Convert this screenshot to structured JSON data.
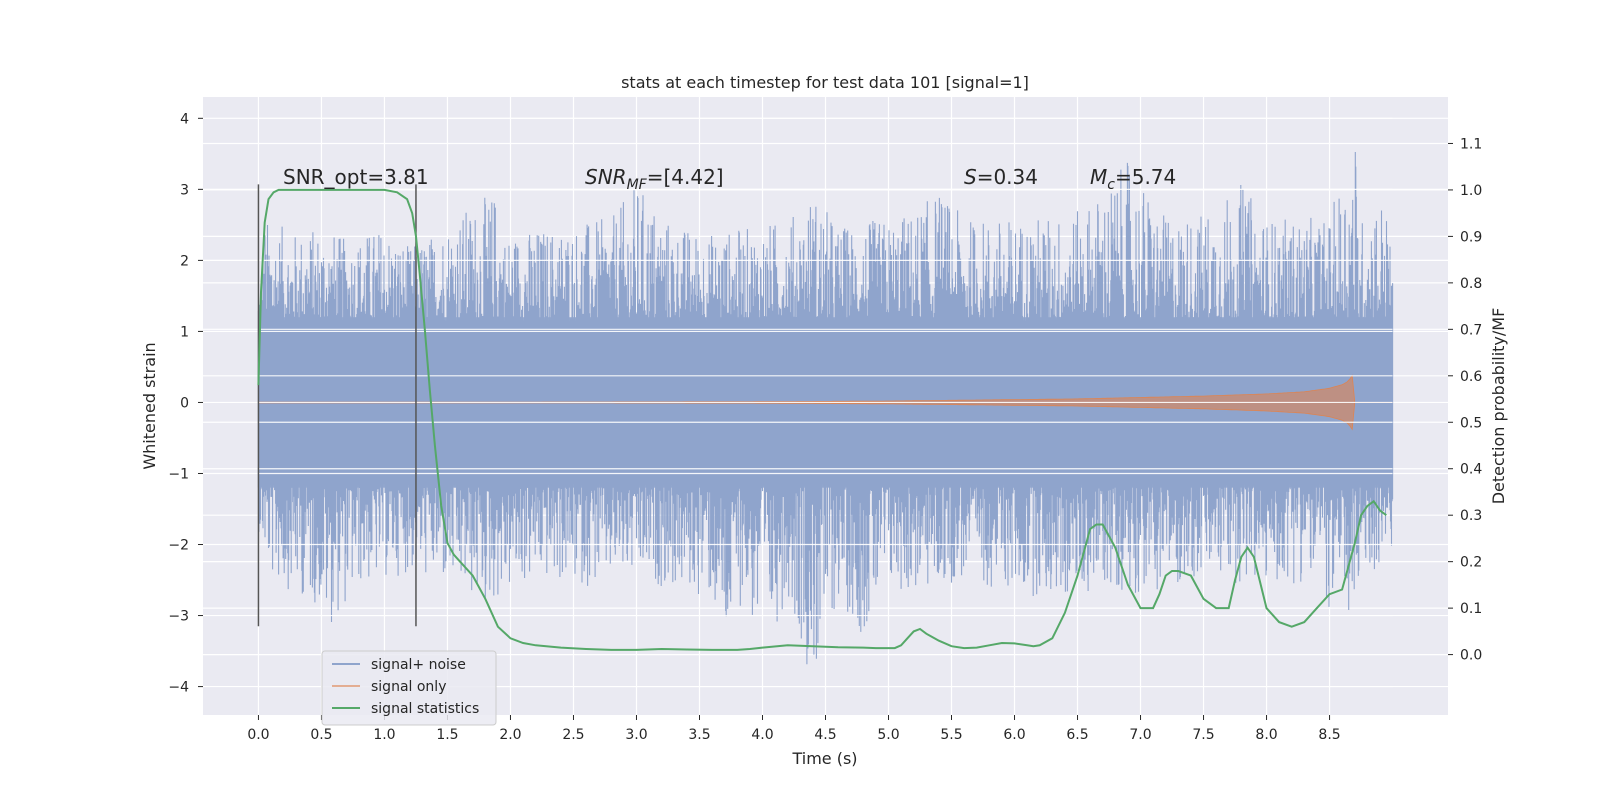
{
  "chart_data": {
    "type": "line",
    "title": "stats at each timestep for test data 101 [signal=1]",
    "xlabel": "Time (s)",
    "ylabel": "Whitened strain",
    "ylabel_right": "Detection probability/MF",
    "xlim": [
      -0.44,
      9.44
    ],
    "ylim": [
      -4.4,
      4.3
    ],
    "ylim_right": [
      -0.13,
      1.2
    ],
    "x_ticks": [
      "0.0",
      "0.5",
      "1.0",
      "1.5",
      "2.0",
      "2.5",
      "3.0",
      "3.5",
      "4.0",
      "4.5",
      "5.0",
      "5.5",
      "6.0",
      "6.5",
      "7.0",
      "7.5",
      "8.0",
      "8.5"
    ],
    "y_ticks": [
      "4",
      "3",
      "2",
      "1",
      "0",
      "−1",
      "−2",
      "−3",
      "−4"
    ],
    "y_ticks_right": [
      "1.1",
      "1.0",
      "0.9",
      "0.8",
      "0.7",
      "0.6",
      "0.5",
      "0.4",
      "0.3",
      "0.2",
      "0.1",
      "0.0"
    ],
    "grid": true,
    "legend_position": "lower-left",
    "colors": {
      "noise": "#8fa4cc",
      "signal": "#dd8452",
      "stats": "#55a868",
      "background": "#eaeaf2",
      "grid": "#ffffff",
      "vline": "#555555"
    },
    "annotations": {
      "snr_opt": "SNR_opt=3.81",
      "snr_mf_base": "SNR",
      "snr_mf_sub": "MF",
      "snr_mf_rest": "=[4.42]",
      "s_label": "S",
      "s_rest": "=0.34",
      "mc_base": "M",
      "mc_sub": "c",
      "mc_rest": "=5.74"
    },
    "vertical_lines": [
      {
        "x": 0.0,
        "ymin": -3.15,
        "ymax": 3.07
      },
      {
        "x": 1.25,
        "ymin": -3.15,
        "ymax": 3.07
      }
    ],
    "noise": {
      "t_start": 0.0,
      "t_end": 9.0,
      "max_envelope": [
        [
          0.0,
          1.5
        ],
        [
          0.05,
          2.6
        ],
        [
          0.3,
          2.4
        ],
        [
          0.5,
          2.5
        ],
        [
          0.7,
          2.3
        ],
        [
          1.0,
          2.5
        ],
        [
          1.2,
          2.2
        ],
        [
          1.4,
          2.4
        ],
        [
          1.5,
          2.6
        ],
        [
          1.8,
          2.9
        ],
        [
          1.9,
          3.0
        ],
        [
          1.95,
          2.4
        ],
        [
          2.4,
          2.5
        ],
        [
          2.8,
          2.6
        ],
        [
          3.0,
          3.1
        ],
        [
          3.3,
          2.5
        ],
        [
          3.6,
          2.4
        ],
        [
          4.0,
          2.5
        ],
        [
          4.3,
          2.7
        ],
        [
          4.4,
          3.0
        ],
        [
          4.6,
          2.5
        ],
        [
          5.0,
          2.6
        ],
        [
          5.2,
          2.7
        ],
        [
          5.4,
          3.0
        ],
        [
          5.6,
          2.6
        ],
        [
          6.0,
          2.6
        ],
        [
          6.5,
          2.7
        ],
        [
          6.7,
          3.0
        ],
        [
          6.9,
          3.4
        ],
        [
          7.2,
          2.6
        ],
        [
          7.5,
          2.7
        ],
        [
          7.8,
          3.1
        ],
        [
          8.0,
          2.6
        ],
        [
          8.5,
          2.6
        ],
        [
          8.7,
          3.9
        ],
        [
          8.75,
          2.6
        ],
        [
          8.9,
          3.0
        ],
        [
          9.0,
          2.4
        ]
      ],
      "min_envelope": [
        [
          0.0,
          -1.8
        ],
        [
          0.1,
          -2.5
        ],
        [
          0.3,
          -2.7
        ],
        [
          0.5,
          -2.9
        ],
        [
          0.55,
          -3.2
        ],
        [
          0.8,
          -2.6
        ],
        [
          1.0,
          -2.5
        ],
        [
          1.2,
          -2.4
        ],
        [
          1.5,
          -2.6
        ],
        [
          1.8,
          -2.9
        ],
        [
          2.2,
          -2.5
        ],
        [
          2.6,
          -2.6
        ],
        [
          2.9,
          -2.5
        ],
        [
          3.2,
          -2.6
        ],
        [
          3.4,
          -2.7
        ],
        [
          3.6,
          -2.8
        ],
        [
          3.7,
          -3.7
        ],
        [
          3.85,
          -2.7
        ],
        [
          4.0,
          -3.7
        ],
        [
          4.2,
          -2.7
        ],
        [
          4.4,
          -4.0
        ],
        [
          4.6,
          -2.8
        ],
        [
          4.8,
          -3.3
        ],
        [
          5.0,
          -2.7
        ],
        [
          5.3,
          -2.7
        ],
        [
          5.6,
          -2.5
        ],
        [
          6.0,
          -2.7
        ],
        [
          6.4,
          -2.8
        ],
        [
          6.7,
          -2.6
        ],
        [
          7.0,
          -2.7
        ],
        [
          7.5,
          -2.5
        ],
        [
          8.0,
          -2.6
        ],
        [
          8.4,
          -2.5
        ],
        [
          8.6,
          -3.4
        ],
        [
          8.8,
          -2.5
        ],
        [
          9.0,
          -2.1
        ]
      ]
    },
    "signal_only": {
      "envelope": [
        [
          0.0,
          0.005
        ],
        [
          2.0,
          0.005
        ],
        [
          4.0,
          0.01
        ],
        [
          5.0,
          0.02
        ],
        [
          6.0,
          0.04
        ],
        [
          6.5,
          0.05
        ],
        [
          7.0,
          0.07
        ],
        [
          7.5,
          0.09
        ],
        [
          8.0,
          0.12
        ],
        [
          8.3,
          0.15
        ],
        [
          8.5,
          0.2
        ],
        [
          8.6,
          0.25
        ],
        [
          8.65,
          0.3
        ],
        [
          8.68,
          0.38
        ],
        [
          8.69,
          0.0
        ],
        [
          9.0,
          0.0
        ]
      ]
    },
    "signal_statistics": {
      "x": [
        0.0,
        0.02,
        0.05,
        0.08,
        0.12,
        0.16,
        0.2,
        0.3,
        0.5,
        0.8,
        1.0,
        1.1,
        1.18,
        1.22,
        1.25,
        1.28,
        1.32,
        1.36,
        1.4,
        1.45,
        1.5,
        1.55,
        1.6,
        1.7,
        1.8,
        1.9,
        2.0,
        2.1,
        2.2,
        2.4,
        2.6,
        2.8,
        3.0,
        3.2,
        3.4,
        3.6,
        3.8,
        3.9,
        4.0,
        4.2,
        4.4,
        4.6,
        4.8,
        4.9,
        5.0,
        5.05,
        5.1,
        5.15,
        5.2,
        5.25,
        5.3,
        5.4,
        5.5,
        5.6,
        5.7,
        5.8,
        5.9,
        6.0,
        6.1,
        6.15,
        6.2,
        6.3,
        6.4,
        6.5,
        6.55,
        6.6,
        6.65,
        6.7,
        6.8,
        6.9,
        7.0,
        7.1,
        7.15,
        7.2,
        7.25,
        7.3,
        7.4,
        7.5,
        7.6,
        7.7,
        7.75,
        7.8,
        7.85,
        7.9,
        8.0,
        8.1,
        8.2,
        8.3,
        8.4,
        8.5,
        8.6,
        8.7,
        8.75,
        8.8,
        8.85,
        8.9,
        8.95
      ],
      "values": [
        0.58,
        0.78,
        0.93,
        0.98,
        0.995,
        1.0,
        1.0,
        1.0,
        1.0,
        1.0,
        1.0,
        0.995,
        0.98,
        0.95,
        0.9,
        0.82,
        0.7,
        0.57,
        0.45,
        0.32,
        0.24,
        0.215,
        0.2,
        0.17,
        0.12,
        0.06,
        0.035,
        0.025,
        0.02,
        0.015,
        0.012,
        0.01,
        0.01,
        0.012,
        0.011,
        0.01,
        0.01,
        0.012,
        0.015,
        0.02,
        0.018,
        0.016,
        0.015,
        0.014,
        0.014,
        0.014,
        0.02,
        0.035,
        0.05,
        0.055,
        0.045,
        0.03,
        0.018,
        0.014,
        0.015,
        0.02,
        0.025,
        0.024,
        0.02,
        0.018,
        0.02,
        0.035,
        0.09,
        0.17,
        0.22,
        0.27,
        0.28,
        0.28,
        0.23,
        0.15,
        0.1,
        0.1,
        0.13,
        0.17,
        0.18,
        0.18,
        0.17,
        0.12,
        0.1,
        0.1,
        0.16,
        0.21,
        0.23,
        0.21,
        0.1,
        0.07,
        0.06,
        0.07,
        0.1,
        0.13,
        0.14,
        0.24,
        0.3,
        0.32,
        0.33,
        0.31,
        0.3
      ]
    },
    "legend": [
      {
        "label": "signal+ noise",
        "key": "noise"
      },
      {
        "label": "signal only",
        "key": "signal"
      },
      {
        "label": "signal statistics",
        "key": "stats"
      }
    ]
  }
}
